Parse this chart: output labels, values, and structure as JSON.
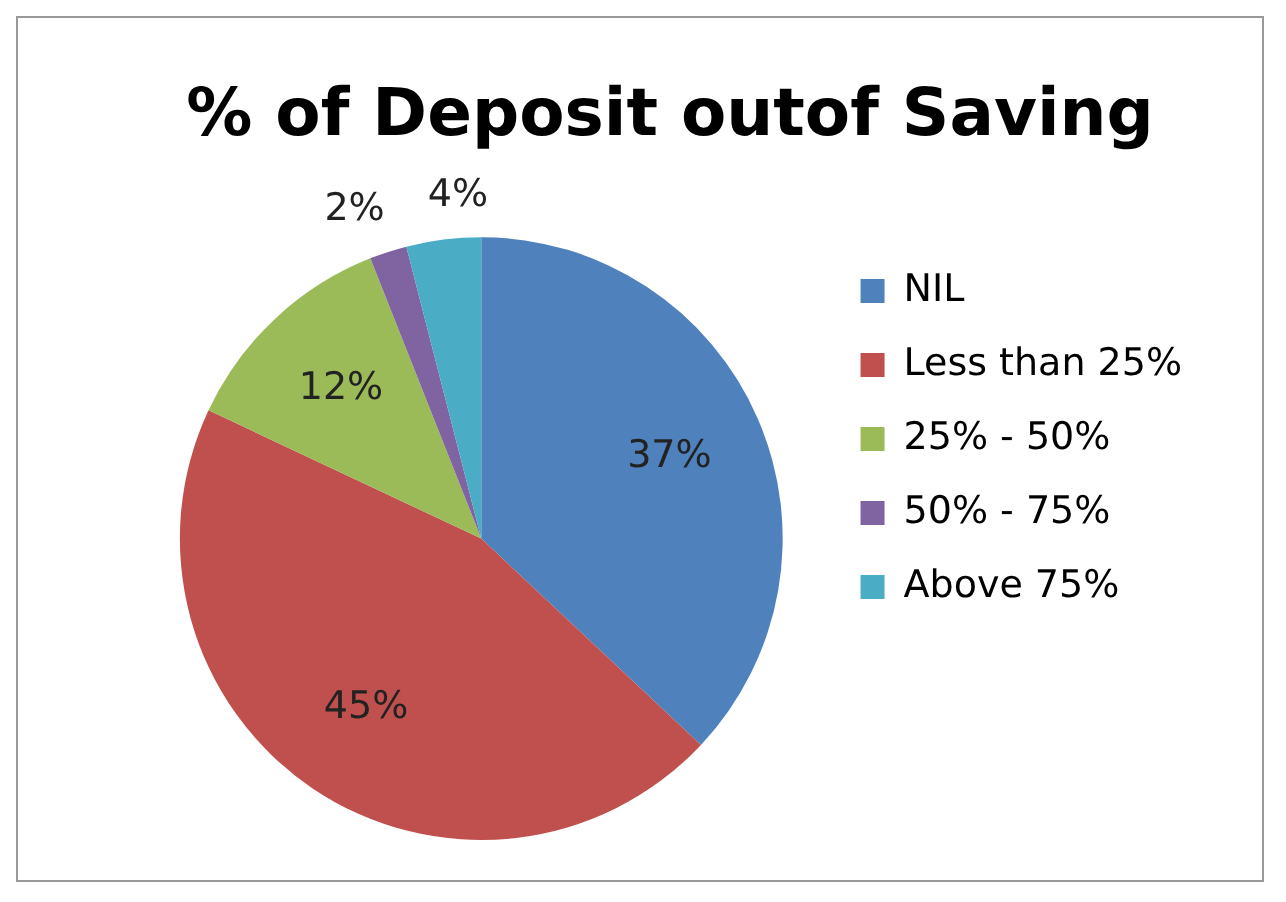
{
  "chart_data": {
    "type": "pie",
    "title": "% of Deposit outof Saving",
    "categories": [
      "NIL",
      "Less than 25%",
      "25% - 50%",
      "50% - 75%",
      "Above 75%"
    ],
    "values": [
      37,
      45,
      12,
      2,
      4
    ],
    "value_labels": [
      "37%",
      "45%",
      "12%",
      "2%",
      "4%"
    ],
    "colors": [
      "#4f81bd",
      "#c0504d",
      "#9bbb59",
      "#8064a2",
      "#4bacc6"
    ],
    "legend": "right"
  }
}
